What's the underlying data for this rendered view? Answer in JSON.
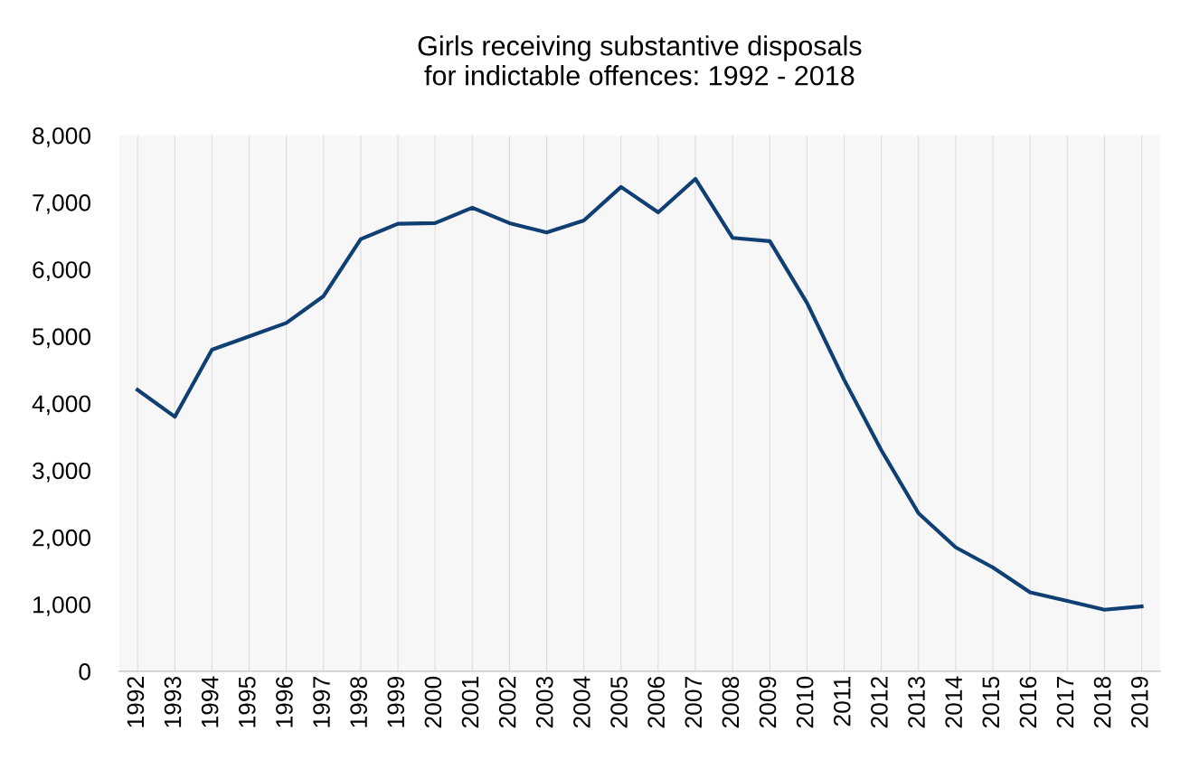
{
  "chart_data": {
    "type": "line",
    "title": "Girls receiving substantive disposals\nfor indictable offences: 1992 - 2018",
    "categories": [
      "1992",
      "1993",
      "1994",
      "1995",
      "1996",
      "1997",
      "1998",
      "1999",
      "2000",
      "2001",
      "2002",
      "2003",
      "2004",
      "2005",
      "2006",
      "2007",
      "2008",
      "2009",
      "2010",
      "2011",
      "2012",
      "2013",
      "2014",
      "2015",
      "2016",
      "2017",
      "2018",
      "2019"
    ],
    "series": [
      {
        "color": "#0f3f73",
        "values": [
          4200,
          3800,
          4800,
          5000,
          5200,
          5600,
          6450,
          6680,
          6690,
          6920,
          6690,
          6550,
          6730,
          7230,
          6850,
          7350,
          6470,
          6420,
          5500,
          4350,
          3300,
          2360,
          1850,
          1550,
          1180,
          1050,
          920,
          970
        ]
      }
    ],
    "ylim": [
      0,
      8000
    ],
    "yticks": [
      {
        "value": 0,
        "label": "0"
      },
      {
        "value": 1000,
        "label": "1,000"
      },
      {
        "value": 2000,
        "label": "2,000"
      },
      {
        "value": 3000,
        "label": "3,000"
      },
      {
        "value": 4000,
        "label": "4,000"
      },
      {
        "value": 5000,
        "label": "5,000"
      },
      {
        "value": 6000,
        "label": "6,000"
      },
      {
        "value": 7000,
        "label": "7,000"
      },
      {
        "value": 8000,
        "label": "8,000"
      }
    ],
    "grid": "x",
    "legend": false,
    "marker": "none",
    "line_style": "solid"
  }
}
